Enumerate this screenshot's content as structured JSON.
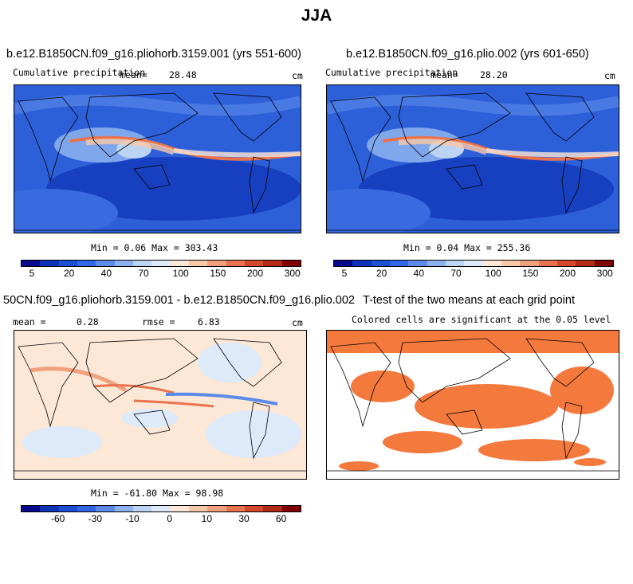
{
  "figure_title": "JJA",
  "panels": [
    {
      "title": "b.e12.B1850CN.f09_g16.pliohorb.3159.001 (yrs 551-600)",
      "variable": "Cumulative precipitation",
      "mean_label": "mean=",
      "mean_value": "28.48",
      "units": "cm",
      "minmax": "Min =    0.06 Max = 303.43"
    },
    {
      "title": "b.e12.B1850CN.f09_g16.plio.002 (yrs 601-650)",
      "variable": "Cumulative precipitation",
      "mean_label": "mean=",
      "mean_value": "28.20",
      "units": "cm",
      "minmax": "Min =    0.04 Max = 255.36"
    },
    {
      "title": "50CN.f09_g16.pliohorb.3159.001 - b.e12.B1850CN.f09_g16.plio.002",
      "mean_label": "mean =",
      "mean_value": "0.28",
      "rmse_label": "rmse =",
      "rmse_value": "6.83",
      "units": "cm",
      "minmax": "Min = -61.80 Max =  98.98"
    },
    {
      "title": "T-test of the two means at each grid point",
      "subtitle": "Colored cells are significant at the 0.05 level"
    }
  ],
  "colorbars": {
    "precip": {
      "colors": [
        "#08088a",
        "#0d33b8",
        "#1a4fd6",
        "#3366e6",
        "#5b8ae8",
        "#8cb1ee",
        "#bcd4f3",
        "#dceafa",
        "#fde7d6",
        "#f8c9a9",
        "#f0a07c",
        "#e8734e",
        "#d4492e",
        "#b02a17",
        "#800000"
      ],
      "tick_labels": [
        "5",
        "20",
        "40",
        "70",
        "100",
        "150",
        "200",
        "300"
      ]
    },
    "diff": {
      "colors": [
        "#08088a",
        "#0d33b8",
        "#1a4fd6",
        "#3366e6",
        "#5b8ae8",
        "#8cb1ee",
        "#bcd4f3",
        "#dceafa",
        "#fde7d6",
        "#f8c9a9",
        "#f0a07c",
        "#e8734e",
        "#d4492e",
        "#b02a17",
        "#800000"
      ],
      "tick_labels": [
        "-60",
        "-30",
        "-10",
        "0",
        "10",
        "30",
        "60"
      ]
    }
  },
  "significance_color": "#f4793d"
}
